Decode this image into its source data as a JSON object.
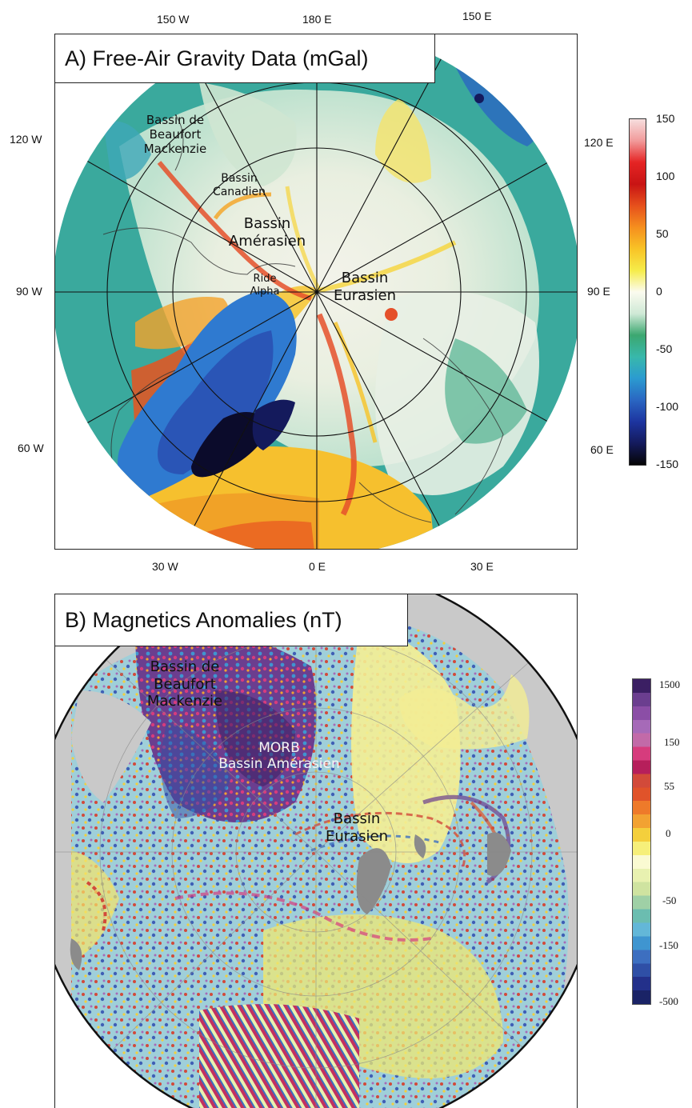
{
  "panel_a": {
    "title": "A)  Free-Air Gravity Data (mGal)",
    "longitude_labels": {
      "top": [
        "150 W",
        "180 E",
        "150 E"
      ],
      "left": [
        "120 W",
        "90 W",
        "60 W"
      ],
      "right": [
        "120 E",
        "90 E",
        "60 E"
      ],
      "bottom": [
        "30 W",
        "0 E",
        "30 E"
      ]
    },
    "map_labels": {
      "beaufort": "Bassin de\nBeaufort\nMackenzie",
      "canadien": "Bassin\nCanadien",
      "amerasien": "Bassin\nAmérasien",
      "alpha": "Ride\nAlpha",
      "eurasien": "Bassin\nEurasien"
    },
    "colorbar": {
      "unit": "mGal",
      "ticks": [
        "150",
        "100",
        "50",
        "0",
        "-50",
        "-100",
        "-150"
      ],
      "colors": [
        "#f6dede",
        "#f19a9a",
        "#e52424",
        "#c81414",
        "#e6501c",
        "#f58f1e",
        "#f8c326",
        "#f6ec4a",
        "#fbfbef",
        "#cfe9d6",
        "#3ca770",
        "#38b8ab",
        "#2b9bd0",
        "#2a66c2",
        "#1d35a0",
        "#141a5c",
        "#050505"
      ]
    }
  },
  "panel_b": {
    "title": "B)  Magnetics Anomalies (nT)",
    "map_labels": {
      "beaufort": "Bassin de\nBeaufort\nMackenzie",
      "morb": "MORB\nBassin Amérasien",
      "eurasien": "Bassin\nEurasien"
    },
    "colorbar": {
      "unit": "nT",
      "ticks": [
        "1500",
        "150",
        "55",
        "0",
        "-50",
        "-150",
        "-500"
      ],
      "colors": [
        "#3b1f63",
        "#6b3e8f",
        "#8b4ea6",
        "#a66ab8",
        "#c26aa8",
        "#d63c7d",
        "#b61f5b",
        "#d24a3a",
        "#e0532a",
        "#ee7a2a",
        "#f2a232",
        "#f4cf3c",
        "#f6ef7a",
        "#fafad2",
        "#e8f1b0",
        "#cfe3a0",
        "#9fd0a6",
        "#6bbdb0",
        "#63b7d8",
        "#3f95d0",
        "#3d6fc0",
        "#2f4fa6",
        "#23308a",
        "#1a2366"
      ]
    }
  }
}
